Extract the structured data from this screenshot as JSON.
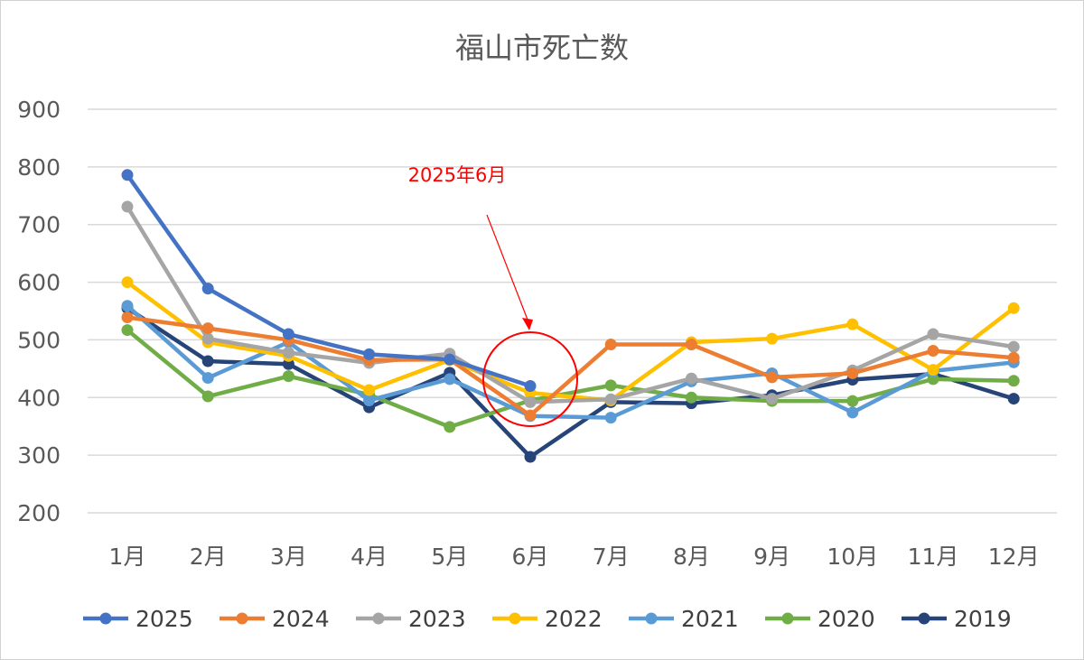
{
  "chart_data": {
    "type": "line",
    "title": "福山市死亡数",
    "categories": [
      "1月",
      "2月",
      "3月",
      "4月",
      "5月",
      "6月",
      "7月",
      "8月",
      "9月",
      "10月",
      "11月",
      "12月"
    ],
    "ylim": [
      200,
      900
    ],
    "yticks": [
      900,
      800,
      700,
      600,
      500,
      400,
      300,
      200
    ],
    "grid": true,
    "legend_position": "bottom",
    "series": [
      {
        "name": "2019",
        "color": "#264478",
        "values": [
          555,
          463,
          458,
          383,
          443,
          297,
          392,
          390,
          404,
          431,
          441,
          398
        ]
      },
      {
        "name": "2020",
        "color": "#70ad47",
        "values": [
          517,
          402,
          437,
          405,
          349,
          395,
          421,
          400,
          394,
          394,
          432,
          429
        ]
      },
      {
        "name": "2021",
        "color": "#5b9bd5",
        "values": [
          559,
          434,
          496,
          395,
          432,
          368,
          365,
          428,
          442,
          374,
          446,
          461
        ]
      },
      {
        "name": "2022",
        "color": "#ffc000",
        "values": [
          600,
          496,
          472,
          413,
          465,
          408,
          395,
          496,
          502,
          527,
          448,
          555
        ]
      },
      {
        "name": "2023",
        "color": "#a5a5a5",
        "values": [
          731,
          502,
          478,
          460,
          476,
          392,
          397,
          433,
          398,
          447,
          510,
          488
        ]
      },
      {
        "name": "2024",
        "color": "#ed7d31",
        "values": [
          539,
          520,
          500,
          465,
          466,
          369,
          492,
          492,
          435,
          442,
          481,
          469
        ]
      },
      {
        "name": "2025",
        "color": "#4472c4",
        "values": [
          786,
          589,
          510,
          475,
          466,
          420,
          null,
          null,
          null,
          null,
          null,
          null
        ]
      }
    ],
    "legend_order": [
      "2025",
      "2024",
      "2023",
      "2022",
      "2021",
      "2020",
      "2019"
    ],
    "annotation": {
      "text": "2025年6月",
      "color": "#ff0000",
      "target_category": "6月",
      "target_value": 420
    }
  }
}
